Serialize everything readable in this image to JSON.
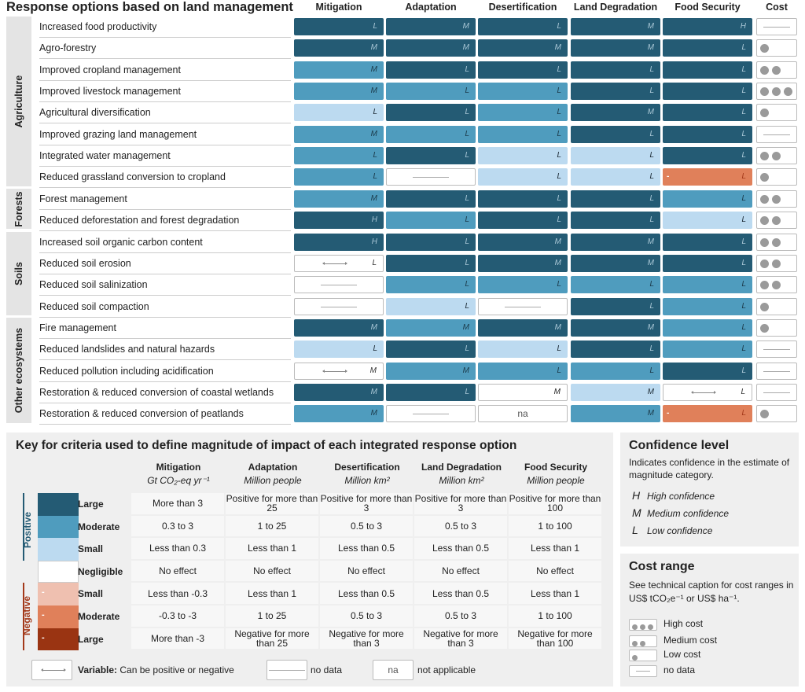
{
  "title": "Response options based on land management",
  "columns": [
    "Mitigation",
    "Adaptation",
    "Desertification",
    "Land Degradation",
    "Food Security",
    "Cost"
  ],
  "colors": {
    "large_positive": "#245b74",
    "moderate_positive": "#4f9cbe",
    "small_positive": "#bcdaf0",
    "negligible": "#ffffff",
    "small_negative": "#efc0b0",
    "moderate_negative": "#e0805a",
    "large_negative": "#9a3412"
  },
  "groups": [
    {
      "name": "Agriculture",
      "rows": [
        {
          "label": "Increased food productivity",
          "cells": [
            [
              "LP",
              "L"
            ],
            [
              "LP",
              "M"
            ],
            [
              "LP",
              "L"
            ],
            [
              "LP",
              "M"
            ],
            [
              "LP",
              "H"
            ]
          ],
          "cost": "nd"
        },
        {
          "label": "Agro-forestry",
          "cells": [
            [
              "LP",
              "M"
            ],
            [
              "LP",
              "M"
            ],
            [
              "LP",
              "M"
            ],
            [
              "LP",
              "M"
            ],
            [
              "LP",
              "L"
            ]
          ],
          "cost": 1
        },
        {
          "label": "Improved cropland management",
          "cells": [
            [
              "MP",
              "M"
            ],
            [
              "LP",
              "L"
            ],
            [
              "LP",
              "L"
            ],
            [
              "LP",
              "L"
            ],
            [
              "LP",
              "L"
            ]
          ],
          "cost": 2
        },
        {
          "label": "Improved livestock management",
          "cells": [
            [
              "MP",
              "M"
            ],
            [
              "MP",
              "L"
            ],
            [
              "MP",
              "L"
            ],
            [
              "LP",
              "L"
            ],
            [
              "LP",
              "L"
            ]
          ],
          "cost": 3
        },
        {
          "label": "Agricultural diversification",
          "cells": [
            [
              "SP",
              "L"
            ],
            [
              "LP",
              "L"
            ],
            [
              "MP",
              "L"
            ],
            [
              "LP",
              "M"
            ],
            [
              "LP",
              "L"
            ]
          ],
          "cost": 1
        },
        {
          "label": "Improved grazing land management",
          "cells": [
            [
              "MP",
              "M"
            ],
            [
              "MP",
              "L"
            ],
            [
              "MP",
              "L"
            ],
            [
              "LP",
              "L"
            ],
            [
              "LP",
              "L"
            ]
          ],
          "cost": "nd"
        },
        {
          "label": "Integrated water management",
          "cells": [
            [
              "MP",
              "L"
            ],
            [
              "LP",
              "L"
            ],
            [
              "SP",
              "L"
            ],
            [
              "SP",
              "L"
            ],
            [
              "LP",
              "L"
            ]
          ],
          "cost": 2
        },
        {
          "label": "Reduced grassland conversion to cropland",
          "cells": [
            [
              "MP",
              "L"
            ],
            [
              "nd",
              ""
            ],
            [
              "SP",
              "L"
            ],
            [
              "SP",
              "L"
            ],
            [
              "MN",
              "L"
            ]
          ],
          "cost": 1
        }
      ]
    },
    {
      "name": "Forests",
      "rows": [
        {
          "label": "Forest management",
          "cells": [
            [
              "MP",
              "M"
            ],
            [
              "LP",
              "L"
            ],
            [
              "LP",
              "L"
            ],
            [
              "LP",
              "L"
            ],
            [
              "MP",
              "L"
            ]
          ],
          "cost": 2
        },
        {
          "label": "Reduced deforestation and forest degradation",
          "cells": [
            [
              "LP",
              "H"
            ],
            [
              "MP",
              "L"
            ],
            [
              "LP",
              "L"
            ],
            [
              "LP",
              "L"
            ],
            [
              "SP",
              "L"
            ]
          ],
          "cost": 2
        }
      ]
    },
    {
      "name": "Soils",
      "rows": [
        {
          "label": "Increased soil organic carbon content",
          "cells": [
            [
              "LP",
              "H"
            ],
            [
              "LP",
              "L"
            ],
            [
              "LP",
              "M"
            ],
            [
              "LP",
              "M"
            ],
            [
              "LP",
              "L"
            ]
          ],
          "cost": 2
        },
        {
          "label": "Reduced soil erosion",
          "cells": [
            [
              "var",
              "L"
            ],
            [
              "LP",
              "L"
            ],
            [
              "LP",
              "M"
            ],
            [
              "LP",
              "M"
            ],
            [
              "LP",
              "L"
            ]
          ],
          "cost": 2
        },
        {
          "label": "Reduced soil salinization",
          "cells": [
            [
              "nd",
              ""
            ],
            [
              "MP",
              "L"
            ],
            [
              "MP",
              "L"
            ],
            [
              "MP",
              "L"
            ],
            [
              "MP",
              "L"
            ]
          ],
          "cost": 2
        },
        {
          "label": "Reduced soil compaction",
          "cells": [
            [
              "nd",
              ""
            ],
            [
              "SP",
              "L"
            ],
            [
              "nd",
              ""
            ],
            [
              "LP",
              "L"
            ],
            [
              "MP",
              "L"
            ]
          ],
          "cost": 1
        }
      ]
    },
    {
      "name": "Other ecosystems",
      "rows": [
        {
          "label": "Fire management",
          "cells": [
            [
              "LP",
              "M"
            ],
            [
              "MP",
              "M"
            ],
            [
              "LP",
              "M"
            ],
            [
              "LP",
              "M"
            ],
            [
              "MP",
              "L"
            ]
          ],
          "cost": 1
        },
        {
          "label": "Reduced landslides and natural hazards",
          "cells": [
            [
              "SP",
              "L"
            ],
            [
              "LP",
              "L"
            ],
            [
              "SP",
              "L"
            ],
            [
              "LP",
              "L"
            ],
            [
              "MP",
              "L"
            ]
          ],
          "cost": "nd"
        },
        {
          "label": "Reduced pollution including acidification",
          "cells": [
            [
              "var",
              "M"
            ],
            [
              "MP",
              "M"
            ],
            [
              "MP",
              "L"
            ],
            [
              "MP",
              "L"
            ],
            [
              "LP",
              "L"
            ]
          ],
          "cost": "nd"
        },
        {
          "label": "Restoration & reduced conversion of coastal wetlands",
          "cells": [
            [
              "LP",
              "M"
            ],
            [
              "LP",
              "L"
            ],
            [
              "N",
              "M"
            ],
            [
              "SP",
              "M"
            ],
            [
              "var",
              "L"
            ]
          ],
          "cost": "nd"
        },
        {
          "label": "Restoration & reduced conversion of peatlands",
          "cells": [
            [
              "MP",
              "M"
            ],
            [
              "nd",
              ""
            ],
            [
              "na",
              "na"
            ],
            [
              "MP",
              "M"
            ],
            [
              "MN",
              "L"
            ]
          ],
          "cost": 1
        }
      ]
    }
  ],
  "key": {
    "title": "Key for criteria used to define magnitude of impact of each integrated response option",
    "positive": "Positive",
    "negative": "Negative",
    "neg_mark": "-",
    "headers": [
      {
        "name": "Mitigation",
        "unit": "Gt CO₂-eq yr⁻¹"
      },
      {
        "name": "Adaptation",
        "unit": "Million people"
      },
      {
        "name": "Desertification",
        "unit": "Million km²"
      },
      {
        "name": "Land Degradation",
        "unit": "Million km²"
      },
      {
        "name": "Food Security",
        "unit": "Million people"
      }
    ],
    "rows": [
      {
        "label": "Large",
        "values": [
          "More than 3",
          "Positive for more than 25",
          "Positive for more than 3",
          "Positive for more than 3",
          "Positive for more than 100"
        ]
      },
      {
        "label": "Moderate",
        "values": [
          "0.3 to 3",
          "1 to 25",
          "0.5 to 3",
          "0.5 to 3",
          "1 to 100"
        ]
      },
      {
        "label": "Small",
        "values": [
          "Less than 0.3",
          "Less than 1",
          "Less than 0.5",
          "Less than 0.5",
          "Less than 1"
        ]
      },
      {
        "label": "Negligible",
        "values": [
          "No effect",
          "No effect",
          "No effect",
          "No effect",
          "No effect"
        ]
      },
      {
        "label": "Small",
        "values": [
          "Less than -0.3",
          "Less than 1",
          "Less than 0.5",
          "Less than 0.5",
          "Less than 1"
        ]
      },
      {
        "label": "Moderate",
        "values": [
          "-0.3 to -3",
          "1 to 25",
          "0.5 to 3",
          "0.5 to 3",
          "1 to 100"
        ]
      },
      {
        "label": "Large",
        "values": [
          "More than -3",
          "Negative for more than 25",
          "Negative for more than 3",
          "Negative for more than 3",
          "Negative for more than 100"
        ]
      }
    ],
    "variable_bold": "Variable:",
    "variable_text": "Can be positive or negative",
    "no_data": "no data",
    "na": "na",
    "not_applicable": "not applicable"
  },
  "confidence": {
    "title": "Confidence level",
    "desc": "Indicates confidence in the estimate of magnitude category.",
    "items": [
      {
        "k": "H",
        "v": "High confidence"
      },
      {
        "k": "M",
        "v": "Medium confidence"
      },
      {
        "k": "L",
        "v": "Low confidence"
      }
    ]
  },
  "cost_range": {
    "title": "Cost range",
    "desc": "See technical caption for cost ranges in US$ tCO₂e⁻¹ or US$ ha⁻¹.",
    "items": [
      {
        "dots": 3,
        "label": "High cost"
      },
      {
        "dots": 2,
        "label": "Medium cost"
      },
      {
        "dots": 1,
        "label": "Low cost"
      },
      {
        "dots": 0,
        "label": "no data"
      }
    ]
  }
}
